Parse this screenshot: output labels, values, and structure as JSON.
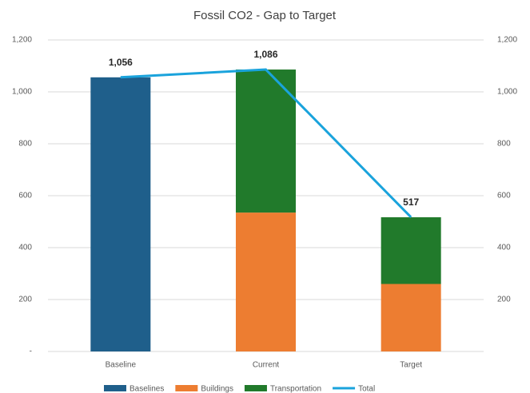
{
  "chart_data": {
    "type": "bar",
    "stacked": true,
    "title": "Fossil CO2 - Gap to Target",
    "categories": [
      "Baseline",
      "Current",
      "Target"
    ],
    "series": [
      {
        "name": "Baselines",
        "color": "#1f5f8b",
        "values": [
          1056,
          null,
          null
        ]
      },
      {
        "name": "Buildings",
        "color": "#ed7d31",
        "values": [
          null,
          535,
          260
        ]
      },
      {
        "name": "Transportation",
        "color": "#217a2b",
        "values": [
          null,
          551,
          257
        ]
      },
      {
        "name": "Total",
        "type": "line",
        "color": "#1aa3dc",
        "values": [
          1056,
          1086,
          517
        ],
        "value_labels": [
          "1,056",
          "1,086",
          "517"
        ]
      }
    ],
    "ylim": [
      0,
      1200
    ],
    "yticks": [
      {
        "value": 0,
        "label": "-"
      },
      200,
      400,
      600,
      800,
      {
        "value": 1000,
        "label": "1,000"
      },
      {
        "value": 1200,
        "label": "1,200"
      }
    ],
    "y2lim": [
      0,
      1200
    ],
    "y2ticks": [
      200,
      400,
      600,
      800,
      {
        "value": 1000,
        "label": "1,000"
      },
      {
        "value": 1200,
        "label": "1,200"
      }
    ],
    "grid": true,
    "legend": "bottom"
  }
}
